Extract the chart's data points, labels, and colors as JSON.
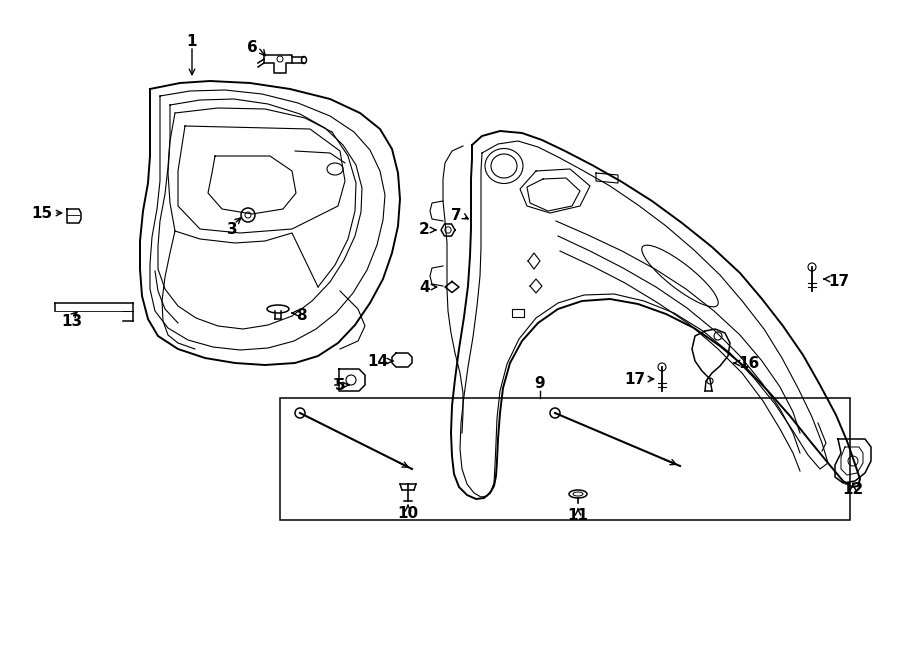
{
  "bg_color": "#ffffff",
  "line_color": "#000000",
  "lw_outer": 1.4,
  "lw_inner": 0.8,
  "lw_med": 1.1,
  "label_fs": 11
}
